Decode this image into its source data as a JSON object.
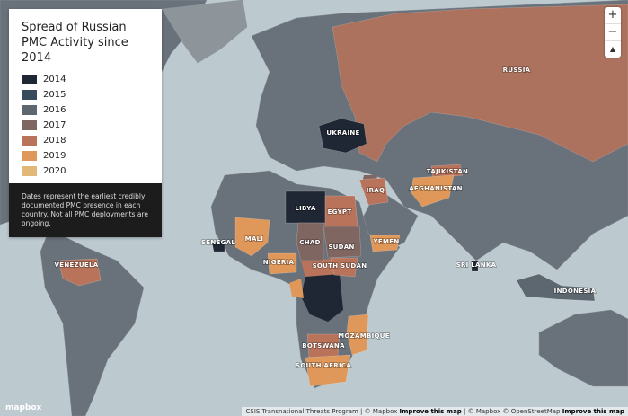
{
  "title": "Spread of Russian PMC Activity since 2014",
  "legend": [
    {
      "label": "2014",
      "color": "#1f2634"
    },
    {
      "label": "2015",
      "color": "#3a4a5d"
    },
    {
      "label": "2016",
      "color": "#5d6770"
    },
    {
      "label": "2017",
      "color": "#7f6661"
    },
    {
      "label": "2018",
      "color": "#b8735a"
    },
    {
      "label": "2019",
      "color": "#df975a"
    },
    {
      "label": "2020",
      "color": "#e2b878"
    }
  ],
  "note": "Dates represent the earliest credibly documented PMC presence in each country. Not all PMC deployments are ongoing.",
  "countries": [
    {
      "label": "RUSSIA",
      "legend": 4
    },
    {
      "label": "UKRAINE",
      "legend": 0
    },
    {
      "label": "LIBYA",
      "legend": 0
    },
    {
      "label": "EGYPT",
      "legend": 4
    },
    {
      "label": "IRAQ",
      "legend": 4
    },
    {
      "label": "TAJIKISTAN",
      "legend": 4
    },
    {
      "label": "AFGHANISTAN",
      "legend": 5
    },
    {
      "label": "CHAD",
      "legend": 3
    },
    {
      "label": "SUDAN",
      "legend": 3
    },
    {
      "label": "SOUTH SUDAN",
      "legend": 4
    },
    {
      "label": "YEMEN",
      "legend": 5
    },
    {
      "label": "MALI",
      "legend": 5
    },
    {
      "label": "SENEGAL",
      "legend": 0
    },
    {
      "label": "NIGERIA",
      "legend": 5
    },
    {
      "label": "VENEZUELA",
      "legend": 4
    },
    {
      "label": "MOZAMBIQUE",
      "legend": 5
    },
    {
      "label": "BOTSWANA",
      "legend": 4
    },
    {
      "label": "SOUTH AFRICA",
      "legend": 5
    },
    {
      "label": "SRI LANKA",
      "legend": 0
    },
    {
      "label": "INDONESIA",
      "legend": 2
    }
  ],
  "controls": {
    "zoom_in": "+",
    "zoom_out": "−",
    "compass": "▲"
  },
  "logo": "mapbox",
  "attribution": {
    "source": "CSIS Transnational Threats Program | © Mapbox",
    "improve1": "Improve this map",
    "osm": "| © Mapbox © OpenStreetMap",
    "improve2": "Improve this map"
  }
}
